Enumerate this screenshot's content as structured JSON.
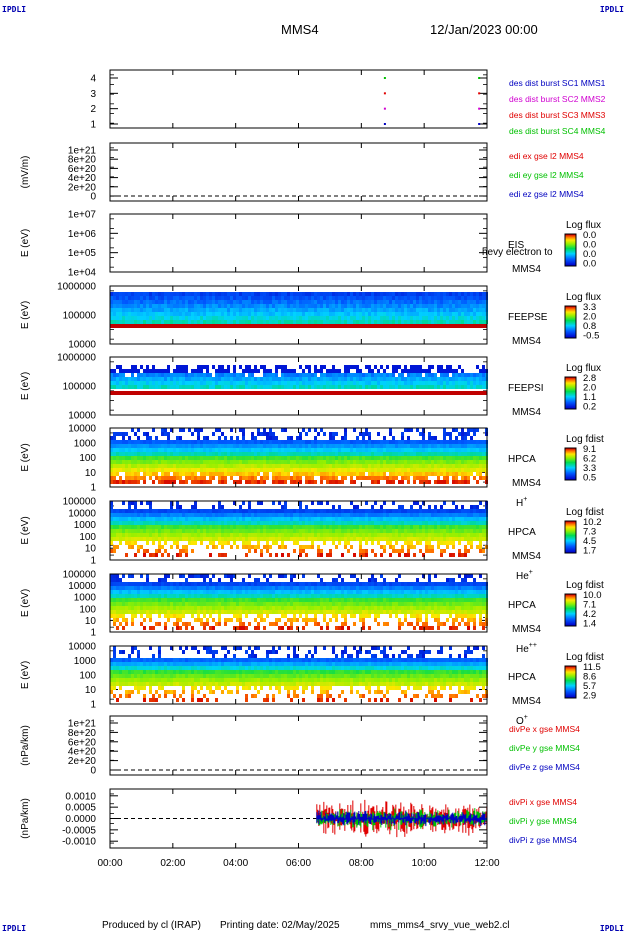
{
  "corners": {
    "tl": "IPDLI",
    "tr": "IPDLI",
    "bl": "IPDLI",
    "br": "IPDLI"
  },
  "header": {
    "mission": "MMS4",
    "date": "12/Jan/2023 00:00"
  },
  "footer": {
    "produced": "Produced by cl (IRAP)",
    "printing": "Printing date: 02/May/2025",
    "file": "mms_mms4_srvy_vue_web2.cl"
  },
  "colors": {
    "red": "#e00000",
    "green": "#00c000",
    "blue": "#0000c0",
    "magenta": "#d000d0",
    "black": "#000000"
  },
  "chart_data": [
    {
      "id": "burst",
      "type": "scatter",
      "ylabel": "",
      "yticks": [
        "1",
        "2",
        "3",
        "4"
      ],
      "legend": [
        {
          "text": "des dist burst SC1 MMS1",
          "color": "#0000c0"
        },
        {
          "text": "des dist burst SC2 MMS2",
          "color": "#d000d0"
        },
        {
          "text": "des dist burst SC3 MMS3",
          "color": "#e00000"
        },
        {
          "text": "des dist burst SC4 MMS4",
          "color": "#00c000"
        }
      ],
      "series": [
        {
          "name": "MMS1",
          "x": [
            "08:45",
            "11:45"
          ],
          "y": [
            1,
            1
          ]
        },
        {
          "name": "MMS2",
          "x": [
            "08:45",
            "11:45"
          ],
          "y": [
            2,
            2
          ]
        },
        {
          "name": "MMS3",
          "x": [
            "08:45",
            "11:45"
          ],
          "y": [
            3,
            3
          ]
        },
        {
          "name": "MMS4",
          "x": [
            "08:45",
            "11:45"
          ],
          "y": [
            4,
            4
          ]
        }
      ]
    },
    {
      "id": "edi",
      "type": "line",
      "ylabel": "(mV/m)",
      "yticks": [
        "0",
        "2e+20",
        "4e+20",
        "6e+20",
        "8e+20",
        "1e+21"
      ],
      "legend": [
        {
          "text": "edi ex gse l2 MMS4",
          "color": "#e00000"
        },
        {
          "text": "edi ey gse l2 MMS4",
          "color": "#00c000"
        },
        {
          "text": "edi ez gse l2 MMS4",
          "color": "#0000c0"
        }
      ]
    },
    {
      "id": "eis",
      "type": "heatmap",
      "ylabel": "E (eV)",
      "yticks": [
        "1e+04",
        "1e+05",
        "1e+06",
        "1e+07"
      ],
      "label1": "EIS",
      "label2": "MMS4",
      "overlay": "hevy electron to",
      "cbar_title": "Log flux",
      "cbar_ticks": [
        "0.0",
        "0.0",
        "0.0",
        "0.0"
      ]
    },
    {
      "id": "feepse",
      "type": "heatmap",
      "ylabel": "E (eV)",
      "yticks": [
        "10000",
        "100000",
        "1000000"
      ],
      "label1": "FEEPSE",
      "label2": "MMS4",
      "cbar_title": "Log flux",
      "cbar_ticks": [
        "3.3",
        "2.0",
        "0.8",
        "-0.5"
      ]
    },
    {
      "id": "feepsi",
      "type": "heatmap",
      "ylabel": "E (eV)",
      "yticks": [
        "10000",
        "100000",
        "1000000"
      ],
      "label1": "FEEPSI",
      "label2": "MMS4",
      "cbar_title": "Log flux",
      "cbar_ticks": [
        "2.8",
        "2.0",
        "1.1",
        "0.2"
      ]
    },
    {
      "id": "hpca_h",
      "type": "heatmap",
      "ylabel": "E (eV)",
      "yticks": [
        "1",
        "10",
        "100",
        "1000",
        "10000"
      ],
      "label1": "HPCA",
      "label2": "MMS4",
      "species": "H",
      "charge": "+",
      "cbar_title": "Log fdist",
      "cbar_ticks": [
        "9.1",
        "6.2",
        "3.3",
        "0.5"
      ]
    },
    {
      "id": "hpca_he",
      "type": "heatmap",
      "ylabel": "E (eV)",
      "yticks": [
        "1",
        "10",
        "100",
        "1000",
        "10000",
        "100000"
      ],
      "label1": "HPCA",
      "label2": "MMS4",
      "species": "He",
      "charge": "+",
      "cbar_title": "Log fdist",
      "cbar_ticks": [
        "10.2",
        "7.3",
        "4.5",
        "1.7"
      ]
    },
    {
      "id": "hpca_hepp",
      "type": "heatmap",
      "ylabel": "E (eV)",
      "yticks": [
        "1",
        "10",
        "100",
        "1000",
        "10000",
        "100000"
      ],
      "label1": "HPCA",
      "label2": "MMS4",
      "species": "He",
      "charge": "++",
      "cbar_title": "Log fdist",
      "cbar_ticks": [
        "10.0",
        "7.1",
        "4.2",
        "1.4"
      ]
    },
    {
      "id": "hpca_o",
      "type": "heatmap",
      "ylabel": "E (eV)",
      "yticks": [
        "1",
        "10",
        "100",
        "1000",
        "10000"
      ],
      "label1": "HPCA",
      "label2": "MMS4",
      "species": "O",
      "charge": "+",
      "cbar_title": "Log fdist",
      "cbar_ticks": [
        "11.5",
        "8.6",
        "5.7",
        "2.9"
      ]
    },
    {
      "id": "divpe",
      "type": "line",
      "ylabel": "(nPa/km)",
      "yticks": [
        "0",
        "2e+20",
        "4e+20",
        "6e+20",
        "8e+20",
        "1e+21"
      ],
      "legend": [
        {
          "text": "divPe x gse MMS4",
          "color": "#e00000"
        },
        {
          "text": "divPe y gse MMS4",
          "color": "#00c000"
        },
        {
          "text": "divPe z gse MMS4",
          "color": "#0000c0"
        }
      ]
    },
    {
      "id": "divpi",
      "type": "line",
      "ylabel": "(nPa/km)",
      "yticks": [
        "-0.0010",
        "-0.0005",
        "0.0000",
        "0.0005",
        "0.0010"
      ],
      "ylim": [
        -0.0013,
        0.0013
      ],
      "data_start": "06:35",
      "data_end": "12:00",
      "legend": [
        {
          "text": "divPi x gse MMS4",
          "color": "#e00000"
        },
        {
          "text": "divPi y gse MMS4",
          "color": "#00c000"
        },
        {
          "text": "divPi z gse MMS4",
          "color": "#0000c0"
        }
      ]
    }
  ],
  "xaxis": {
    "ticks": [
      "00:00",
      "02:00",
      "04:00",
      "06:00",
      "08:00",
      "10:00",
      "12:00"
    ]
  }
}
